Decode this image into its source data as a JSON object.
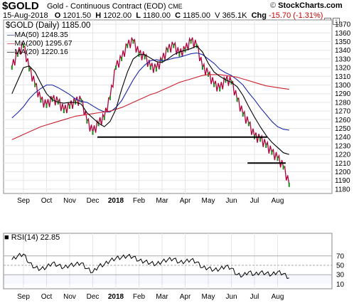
{
  "header": {
    "symbol": "$GOLD",
    "description": "Gold - Continuous Contract (EOD)",
    "exchange": "CME",
    "source": "StockCharts.com",
    "date": "15-Aug-2018",
    "open_label": "O",
    "open": "1201.50",
    "high_label": "H",
    "high": "1202.00",
    "low_label": "L",
    "low": "1180.00",
    "close_label": "C",
    "close": "1185.00",
    "volume": "V 365.1K",
    "chg_label": "Chg",
    "chg": "-15.70 (-1.31%)"
  },
  "price_panel": {
    "title": "$GOLD (Daily) 1185.00",
    "legend": [
      {
        "label": "MA(50) 1248.35",
        "color": "#1c2aa8"
      },
      {
        "label": "MA(200) 1295.67",
        "color": "#cc1f2e"
      },
      {
        "label": "MA(20) 1220.16",
        "color": "#000000"
      }
    ]
  },
  "rsi_panel": {
    "title": "RSI(14) 22.85",
    "ticks": [
      "70",
      "50",
      "30",
      "10"
    ]
  },
  "chart_data": {
    "type": "line",
    "title": "$GOLD (Daily) 1185.00",
    "ylim": [
      1175,
      1375
    ],
    "y_ticks": [
      1180,
      1190,
      1200,
      1210,
      1220,
      1230,
      1240,
      1250,
      1260,
      1270,
      1280,
      1290,
      1300,
      1310,
      1320,
      1330,
      1340,
      1350,
      1360,
      1370
    ],
    "x_tick_labels": [
      "Sep",
      "Oct",
      "Nov",
      "Dec",
      "2018",
      "Feb",
      "Mar",
      "Apr",
      "May",
      "Jun",
      "Jul",
      "Aug"
    ],
    "x_tick_months": [
      0,
      1,
      2,
      3,
      4,
      5,
      6,
      7,
      8,
      9,
      10,
      11
    ],
    "x": [
      -0.5,
      -0.25,
      0,
      0.25,
      0.5,
      0.75,
      1,
      1.25,
      1.5,
      1.75,
      2,
      2.25,
      2.5,
      2.75,
      3,
      3.25,
      3.5,
      3.75,
      4,
      4.25,
      4.5,
      4.75,
      5,
      5.25,
      5.5,
      5.75,
      6,
      6.25,
      6.5,
      6.75,
      7,
      7.25,
      7.5,
      7.75,
      8,
      8.25,
      8.5,
      8.75,
      9,
      9.25,
      9.5,
      9.75,
      10,
      10.25,
      10.5,
      10.75,
      11,
      11.25,
      11.5
    ],
    "series": [
      {
        "name": "$GOLD",
        "color": "#b0003a",
        "values": [
          1320,
          1335,
          1345,
          1318,
          1300,
          1282,
          1276,
          1283,
          1280,
          1270,
          1275,
          1280,
          1282,
          1258,
          1245,
          1255,
          1262,
          1285,
          1320,
          1330,
          1345,
          1350,
          1335,
          1332,
          1320,
          1318,
          1328,
          1340,
          1345,
          1335,
          1340,
          1350,
          1345,
          1320,
          1312,
          1300,
          1295,
          1305,
          1303,
          1283,
          1266,
          1255,
          1240,
          1237,
          1230,
          1222,
          1215,
          1205,
          1185
        ]
      },
      {
        "name": "MA(50)",
        "color": "#1c2aa8",
        "values": [
          1262,
          1268,
          1275,
          1284,
          1291,
          1296,
          1300,
          1300,
          1297,
          1293,
          1289,
          1284,
          1281,
          1280,
          1276,
          1272,
          1269,
          1269,
          1274,
          1282,
          1294,
          1306,
          1316,
          1323,
          1328,
          1329,
          1328,
          1329,
          1331,
          1332,
          1334,
          1336,
          1337,
          1335,
          1330,
          1325,
          1318,
          1314,
          1311,
          1306,
          1300,
          1291,
          1283,
          1274,
          1266,
          1258,
          1252,
          1249,
          1248
        ]
      },
      {
        "name": "MA(200)",
        "color": "#cc1f2e",
        "values": [
          1237,
          1240,
          1243,
          1246,
          1249,
          1252,
          1254,
          1256,
          1258,
          1260,
          1262,
          1264,
          1265,
          1266,
          1267,
          1268,
          1269,
          1270,
          1272,
          1274,
          1277,
          1280,
          1283,
          1286,
          1289,
          1291,
          1294,
          1297,
          1300,
          1303,
          1305,
          1307,
          1309,
          1311,
          1312,
          1312,
          1312,
          1311,
          1310,
          1309,
          1307,
          1305,
          1303,
          1301,
          1299,
          1298,
          1297,
          1296,
          1295
        ]
      },
      {
        "name": "MA(20)",
        "color": "#000000",
        "values": [
          1290,
          1305,
          1320,
          1322,
          1315,
          1302,
          1290,
          1283,
          1280,
          1279,
          1280,
          1280,
          1278,
          1268,
          1262,
          1256,
          1252,
          1258,
          1272,
          1295,
          1315,
          1330,
          1335,
          1335,
          1331,
          1327,
          1326,
          1330,
          1335,
          1338,
          1340,
          1342,
          1345,
          1338,
          1325,
          1315,
          1310,
          1306,
          1303,
          1298,
          1288,
          1275,
          1263,
          1252,
          1242,
          1234,
          1228,
          1222,
          1220
        ]
      }
    ],
    "horizontal_lines": [
      {
        "y": 1240,
        "x_from": 3.2,
        "x_to": 10.55
      },
      {
        "y": 1210,
        "x_from": 9.7,
        "x_to": 11.35
      }
    ],
    "rsi": {
      "ylim": [
        0,
        100
      ],
      "levels": [
        70,
        50,
        30
      ],
      "values": [
        62,
        70,
        74,
        55,
        45,
        42,
        46,
        55,
        50,
        45,
        50,
        52,
        55,
        43,
        35,
        48,
        52,
        60,
        65,
        67,
        70,
        68,
        60,
        58,
        55,
        52,
        58,
        62,
        64,
        56,
        58,
        62,
        57,
        45,
        44,
        40,
        42,
        48,
        44,
        30,
        28,
        36,
        30,
        35,
        33,
        30,
        36,
        32,
        23
      ]
    }
  }
}
